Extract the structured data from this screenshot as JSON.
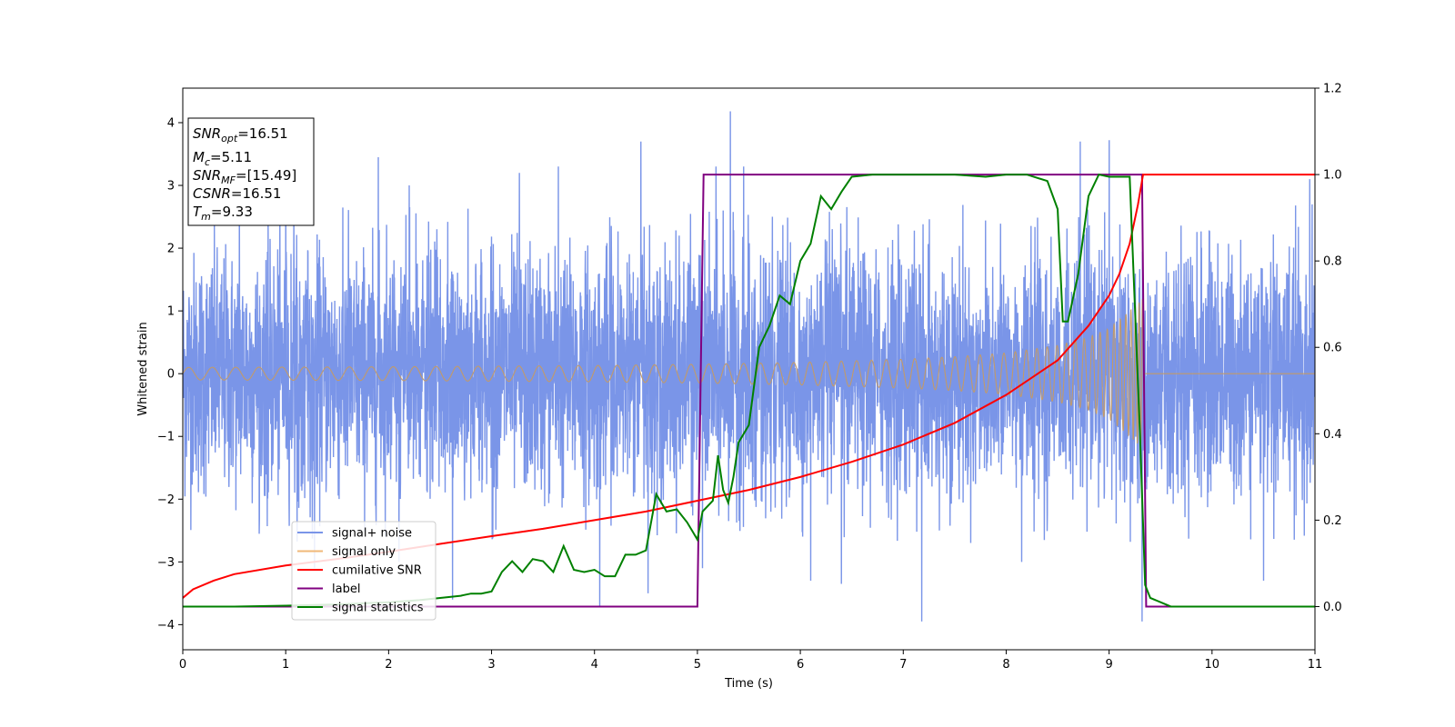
{
  "chart_data": {
    "type": "line",
    "xlabel": "Time (s)",
    "ylabel": "Whitened strain",
    "x_ticks": [
      "0",
      "1",
      "2",
      "3",
      "4",
      "5",
      "6",
      "7",
      "8",
      "9",
      "10",
      "11"
    ],
    "y_ticks": [
      "−4",
      "−3",
      "−2",
      "−1",
      "0",
      "1",
      "2",
      "3",
      "4"
    ],
    "y2_ticks": [
      "0.0",
      "0.2",
      "0.4",
      "0.6",
      "0.8",
      "1.0",
      "1.2"
    ],
    "xlim": [
      0,
      11
    ],
    "ylim": [
      -4.4,
      4.55
    ],
    "y2lim": [
      -0.1,
      1.2
    ],
    "grid": false,
    "legend_position": "lower-left",
    "annotation": {
      "snr_opt": {
        "base": "SNR",
        "sub": "opt",
        "value": "=16.51"
      },
      "mc": {
        "base": "M",
        "sub": "c",
        "value": "=5.11"
      },
      "snr_mf": {
        "base": "SNR",
        "sub": "MF",
        "value": "=[15.49]"
      },
      "csnr": {
        "base": "CSNR",
        "value": "=16.51"
      },
      "tm": {
        "base": "T",
        "sub": "m",
        "value": "=9.33"
      }
    },
    "series": [
      {
        "name": "signal+ noise",
        "axis": "left",
        "color": "#7a95e8",
        "description_values": "noise band approximately between -2.6 and 2.6 with spikes up to 4.18 and down to -3.95",
        "spikes": [
          [
            0.55,
            2.9
          ],
          [
            1.0,
            3.2
          ],
          [
            1.28,
            -3.1
          ],
          [
            1.9,
            3.45
          ],
          [
            2.1,
            -3.0
          ],
          [
            2.2,
            3.0
          ],
          [
            2.62,
            -3.6
          ],
          [
            3.27,
            3.2
          ],
          [
            3.65,
            3.3
          ],
          [
            4.05,
            -3.7
          ],
          [
            4.45,
            3.7
          ],
          [
            4.52,
            -3.5
          ],
          [
            5.05,
            -3.1
          ],
          [
            5.18,
            3.3
          ],
          [
            5.25,
            2.6
          ],
          [
            5.32,
            4.18
          ],
          [
            5.45,
            3.3
          ],
          [
            6.1,
            -3.3
          ],
          [
            6.4,
            -3.35
          ],
          [
            7.18,
            -3.95
          ],
          [
            7.35,
            -2.5
          ],
          [
            8.15,
            -3.0
          ],
          [
            8.72,
            3.7
          ],
          [
            9.0,
            3.72
          ],
          [
            9.32,
            -3.95
          ],
          [
            10.5,
            -3.3
          ],
          [
            10.95,
            3.1
          ]
        ]
      },
      {
        "name": "signal only",
        "axis": "left",
        "color": "#f0b878",
        "description_values": "chirp with amplitude growing from about 0.1 to about 1.2 at 9.33 s, then zero",
        "amplitude_envelope": [
          [
            0,
            0.1
          ],
          [
            2,
            0.11
          ],
          [
            4,
            0.13
          ],
          [
            5,
            0.15
          ],
          [
            6,
            0.18
          ],
          [
            7,
            0.23
          ],
          [
            7.5,
            0.27
          ],
          [
            8,
            0.33
          ],
          [
            8.5,
            0.45
          ],
          [
            8.8,
            0.58
          ],
          [
            9.0,
            0.72
          ],
          [
            9.2,
            1.0
          ],
          [
            9.33,
            1.2
          ],
          [
            9.34,
            0.0
          ],
          [
            11,
            0.0
          ]
        ]
      },
      {
        "name": "cumilative SNR",
        "axis": "right",
        "color": "#ff0000",
        "points": [
          [
            0,
            0.02
          ],
          [
            0.1,
            0.04
          ],
          [
            0.3,
            0.06
          ],
          [
            0.5,
            0.075
          ],
          [
            1.0,
            0.095
          ],
          [
            1.5,
            0.11
          ],
          [
            2.0,
            0.127
          ],
          [
            2.5,
            0.145
          ],
          [
            3.0,
            0.163
          ],
          [
            3.5,
            0.18
          ],
          [
            4.0,
            0.2
          ],
          [
            4.5,
            0.22
          ],
          [
            5.0,
            0.245
          ],
          [
            5.5,
            0.27
          ],
          [
            6.0,
            0.3
          ],
          [
            6.5,
            0.335
          ],
          [
            7.0,
            0.375
          ],
          [
            7.5,
            0.425
          ],
          [
            8.0,
            0.49
          ],
          [
            8.5,
            0.57
          ],
          [
            8.8,
            0.65
          ],
          [
            9.0,
            0.72
          ],
          [
            9.1,
            0.77
          ],
          [
            9.2,
            0.84
          ],
          [
            9.28,
            0.93
          ],
          [
            9.33,
            1.0
          ],
          [
            11,
            1.0
          ]
        ]
      },
      {
        "name": "label",
        "axis": "right",
        "color": "#800080",
        "points": [
          [
            0,
            0.0
          ],
          [
            5.0,
            0.0
          ],
          [
            5.06,
            1.0
          ],
          [
            9.32,
            1.0
          ],
          [
            9.36,
            0.0
          ],
          [
            11,
            0.0
          ]
        ]
      },
      {
        "name": "signal statistics",
        "axis": "right",
        "color": "#008000",
        "points": [
          [
            0,
            0.0
          ],
          [
            0.5,
            0.0
          ],
          [
            1.0,
            0.002
          ],
          [
            1.5,
            0.005
          ],
          [
            2.0,
            0.01
          ],
          [
            2.3,
            0.015
          ],
          [
            2.5,
            0.02
          ],
          [
            2.7,
            0.025
          ],
          [
            2.8,
            0.03
          ],
          [
            2.9,
            0.03
          ],
          [
            3.0,
            0.035
          ],
          [
            3.1,
            0.08
          ],
          [
            3.2,
            0.105
          ],
          [
            3.3,
            0.08
          ],
          [
            3.4,
            0.11
          ],
          [
            3.5,
            0.105
          ],
          [
            3.6,
            0.08
          ],
          [
            3.7,
            0.14
          ],
          [
            3.8,
            0.085
          ],
          [
            3.9,
            0.08
          ],
          [
            4.0,
            0.085
          ],
          [
            4.1,
            0.07
          ],
          [
            4.2,
            0.07
          ],
          [
            4.3,
            0.12
          ],
          [
            4.4,
            0.12
          ],
          [
            4.5,
            0.13
          ],
          [
            4.6,
            0.26
          ],
          [
            4.7,
            0.22
          ],
          [
            4.8,
            0.225
          ],
          [
            4.9,
            0.195
          ],
          [
            5.0,
            0.155
          ],
          [
            5.05,
            0.22
          ],
          [
            5.15,
            0.245
          ],
          [
            5.2,
            0.35
          ],
          [
            5.25,
            0.27
          ],
          [
            5.3,
            0.24
          ],
          [
            5.35,
            0.3
          ],
          [
            5.4,
            0.38
          ],
          [
            5.5,
            0.42
          ],
          [
            5.6,
            0.6
          ],
          [
            5.7,
            0.65
          ],
          [
            5.8,
            0.72
          ],
          [
            5.9,
            0.7
          ],
          [
            6.0,
            0.8
          ],
          [
            6.1,
            0.84
          ],
          [
            6.2,
            0.95
          ],
          [
            6.3,
            0.92
          ],
          [
            6.4,
            0.96
          ],
          [
            6.5,
            0.995
          ],
          [
            6.7,
            1.0
          ],
          [
            7.0,
            1.0
          ],
          [
            7.5,
            1.0
          ],
          [
            7.8,
            0.995
          ],
          [
            8.0,
            1.0
          ],
          [
            8.2,
            1.0
          ],
          [
            8.4,
            0.985
          ],
          [
            8.5,
            0.92
          ],
          [
            8.55,
            0.66
          ],
          [
            8.6,
            0.66
          ],
          [
            8.7,
            0.77
          ],
          [
            8.8,
            0.95
          ],
          [
            8.9,
            1.0
          ],
          [
            9.0,
            0.995
          ],
          [
            9.2,
            0.995
          ],
          [
            9.3,
            0.4
          ],
          [
            9.35,
            0.05
          ],
          [
            9.4,
            0.02
          ],
          [
            9.6,
            0.0
          ],
          [
            11,
            0.0
          ]
        ]
      }
    ]
  }
}
